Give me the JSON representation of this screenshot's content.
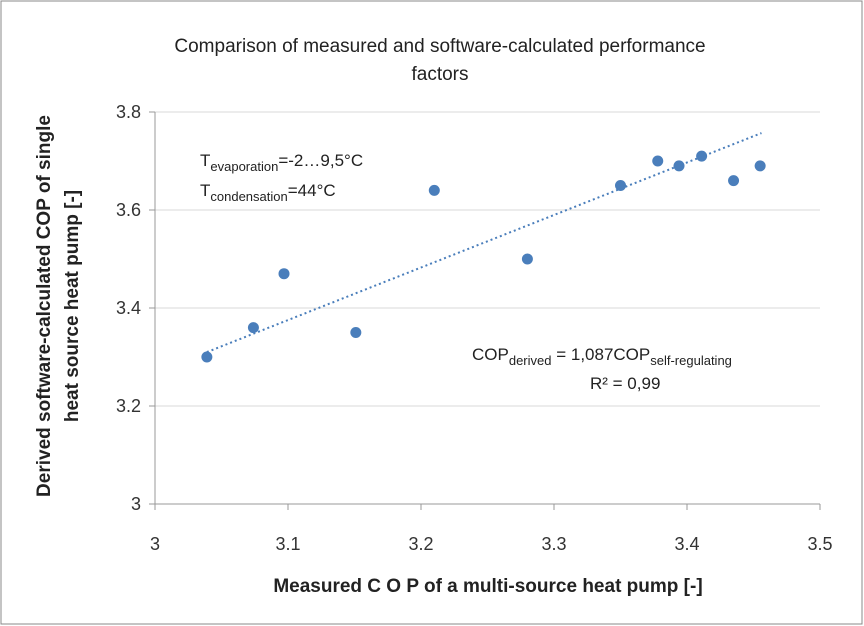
{
  "chart_data": {
    "type": "scatter",
    "title": [
      "Comparison of measured and software-calculated performance",
      "factors"
    ],
    "x_label": "Measured C O P of a multi-source heat pump [-]",
    "y_label": [
      "Derived software-calculated COP of single",
      "heat source heat pump  [-]"
    ],
    "series": [
      {
        "color": "#4a7ebb",
        "x": [
          3.039,
          3.074,
          3.097,
          3.151,
          3.21,
          3.28,
          3.35,
          3.378,
          3.394,
          3.411,
          3.435,
          3.455
        ],
        "values": [
          3.3,
          3.36,
          3.47,
          3.35,
          3.64,
          3.5,
          3.65,
          3.7,
          3.69,
          3.71,
          3.66,
          3.69
        ]
      }
    ],
    "trendline": {
      "color": "#4a7ebb",
      "x": [
        3.039,
        3.456
      ],
      "values": [
        3.31,
        3.757
      ]
    },
    "xlim": [
      3,
      3.5
    ],
    "xticks": [
      3,
      3.1,
      3.2,
      3.3,
      3.4,
      3.5
    ],
    "ylim": [
      3,
      3.8
    ],
    "yticks": [
      3,
      3.2,
      3.4,
      3.6,
      3.8
    ],
    "grid": true,
    "annotations": [
      [
        {
          "text": "T",
          "sub": false
        },
        {
          "text": "evaporation",
          "sub": true
        },
        {
          "text": "=-2…9,5°C",
          "sub": false
        }
      ],
      [
        {
          "text": "T",
          "sub": false
        },
        {
          "text": "condensation",
          "sub": true
        },
        {
          "text": "=44°C",
          "sub": false
        }
      ],
      [
        {
          "text": "COP",
          "sub": false
        },
        {
          "text": "derived",
          "sub": true
        },
        {
          "text": " = 1,087COP",
          "sub": false
        },
        {
          "text": "self-regulating",
          "sub": true
        }
      ],
      [
        {
          "text": "R² = 0,99",
          "sub": false
        }
      ]
    ]
  }
}
